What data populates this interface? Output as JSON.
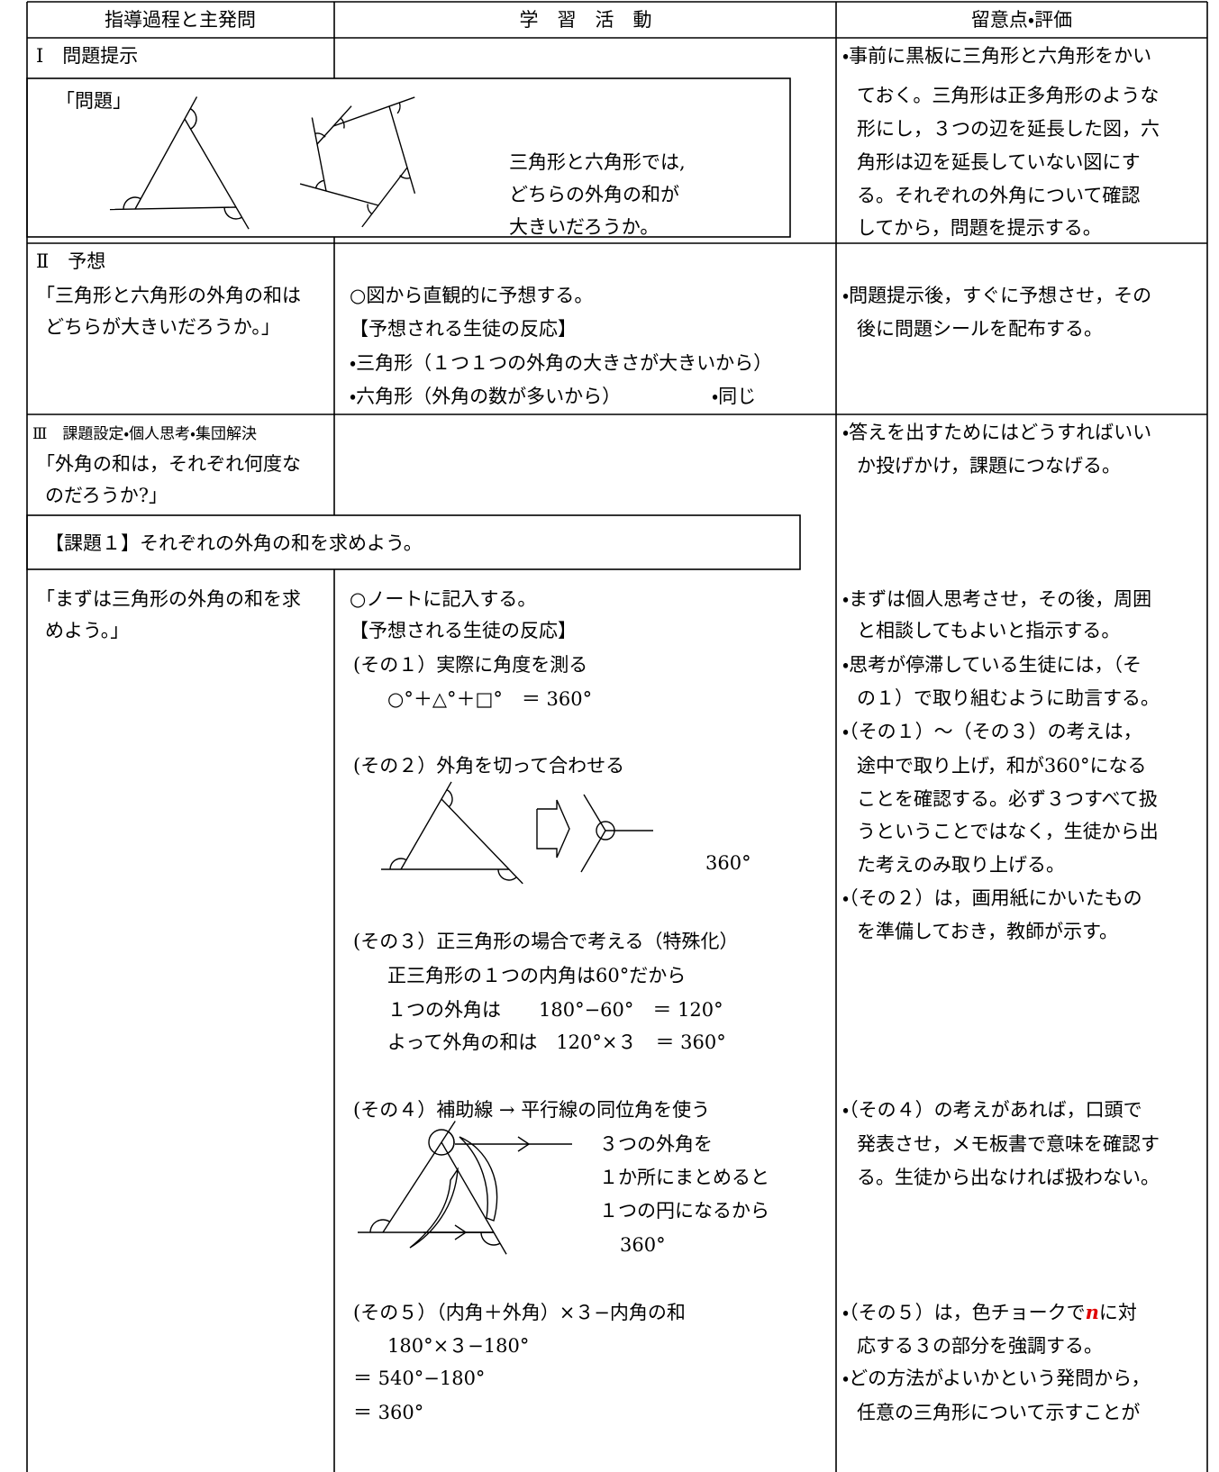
{
  "header": [
    "指導過程と主発問",
    "学　習　活　動",
    "留意点・評価"
  ],
  "rows": [
    {
      "stage": "Ⅰ　問題提示",
      "problem": {
        "label": "「問題」",
        "lines": [
          "三角形と六角形では,",
          "どちらの外角の和が",
          "大きいだろうか。"
        ]
      },
      "notes": [
        "・事前に黒板に三角形と六角形をかい",
        "ておく。三角形は正多角形のような",
        "形にし，３つの辺を延長した図，六",
        "角形は辺を延長していない図にす",
        "る。それぞれの外角について確認",
        "してから，問題を提示する。"
      ]
    },
    {
      "stage": "Ⅱ　予想",
      "question": [
        "「三角形と六角形の外角の和は",
        "どちらが大きいだろうか。」"
      ],
      "activities": [
        "○図から直観的に予想する。",
        "【予想される生徒の反応】",
        "・三角形（１つ１つの外角の大きさが大きいから）",
        "・六角形（外角の数が多いから）",
        "・同じ"
      ],
      "notes": [
        "・問題提示後，すぐに予想させ，その",
        "後に問題シールを配布する。"
      ]
    },
    {
      "stage": "Ⅲ　課題設定・個人思考・集団解決",
      "question": [
        "「外角の和は，それぞれ何度な",
        "のだろうか?」"
      ],
      "notes": [
        "・答えを出すためにはどうすればいい",
        "か投げかけ，課題につなげる。"
      ],
      "task": "【課題１】それぞれの外角の和を求めよう。",
      "sub_question": [
        "「まずは三角形の外角の和を求",
        "めよう。」"
      ],
      "activities": [
        "○ノートに記入する。",
        "【予想される生徒の反応】",
        "(その１）実際に角度を測る",
        "○°＋△°＋□°　＝ 360°",
        "(その２）外角を切って合わせる",
        "360°",
        "(その３）正三角形の場合で考える（特殊化）",
        "正三角形の１つの内角は60°だから",
        "１つの外角は　　180°−60°　＝ 120°",
        "よって外角の和は　120°×３　＝ 360°",
        "(その４）補助線 → 平行線の同位角を使う",
        "３つの外角を",
        "１か所にまとめると",
        "１つの円になるから",
        "360°",
        "(その５）（内角＋外角）×３−内角の和",
        "180°×３−180°",
        "＝ 540°−180°",
        "＝ 360°"
      ],
      "sub_notes": [
        "・まずは個人思考させ，その後，周囲",
        "と相談してもよいと指示する。",
        "・思考が停滞している生徒には，（そ",
        "の１）で取り組むように助言する。",
        "・（その１）～（その３）の考えは，",
        "途中で取り上げ，和が360°になる",
        "ことを確認する。必ず３つすべて扱",
        "うということではなく，生徒から出",
        "た考えのみ取り上げる。",
        "・（その２）は，画用紙にかいたもの",
        "を準備しておき，教師が示す。",
        "・（その４）の考えがあれば，口頭で",
        "発表させ，メモ板書で意味を確認す",
        "る。生徒から出なければ扱わない。",
        "・（その５）は，色チョークで",
        "n",
        "に対",
        "応する３の部分を強調する。",
        "・どの方法がよいかという発問から，",
        "任意の三角形について示すことが"
      ]
    }
  ]
}
